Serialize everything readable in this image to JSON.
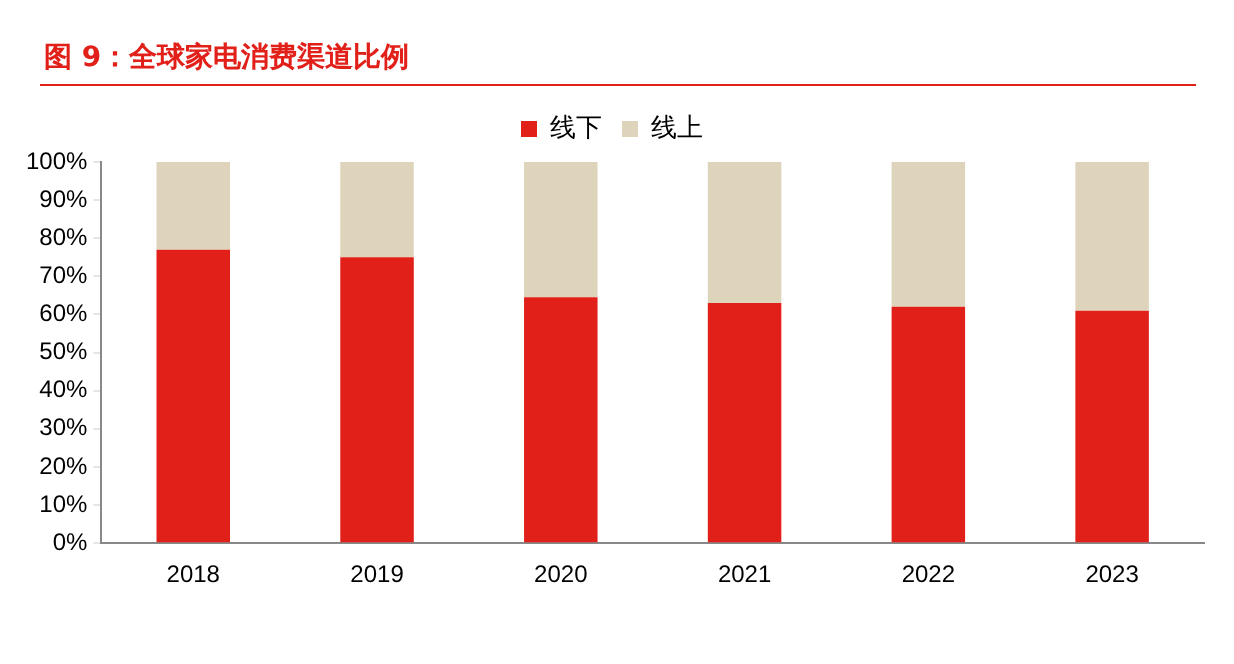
{
  "chart_data": {
    "type": "bar",
    "title": "图 9：全球家电消费渠道比例",
    "categories": [
      "2018",
      "2019",
      "2020",
      "2021",
      "2022",
      "2023"
    ],
    "stacked": true,
    "series": [
      {
        "name": "线下",
        "color": "#e2201a",
        "values": [
          77,
          75,
          64.5,
          63,
          62,
          61
        ]
      },
      {
        "name": "线上",
        "color": "#ded4bb",
        "values": [
          23,
          25,
          35.5,
          37,
          38,
          39
        ]
      }
    ],
    "ylim": [
      0,
      100
    ],
    "yticks": [
      {
        "value": 0,
        "label": "0%"
      },
      {
        "value": 10,
        "label": "10%"
      },
      {
        "value": 20,
        "label": "20%"
      },
      {
        "value": 30,
        "label": "30%"
      },
      {
        "value": 40,
        "label": "40%"
      },
      {
        "value": 50,
        "label": "50%"
      },
      {
        "value": 60,
        "label": "60%"
      },
      {
        "value": 70,
        "label": "70%"
      },
      {
        "value": 80,
        "label": "80%"
      },
      {
        "value": 90,
        "label": "90%"
      },
      {
        "value": 100,
        "label": "100%"
      }
    ],
    "grid": false,
    "legend": "top"
  }
}
